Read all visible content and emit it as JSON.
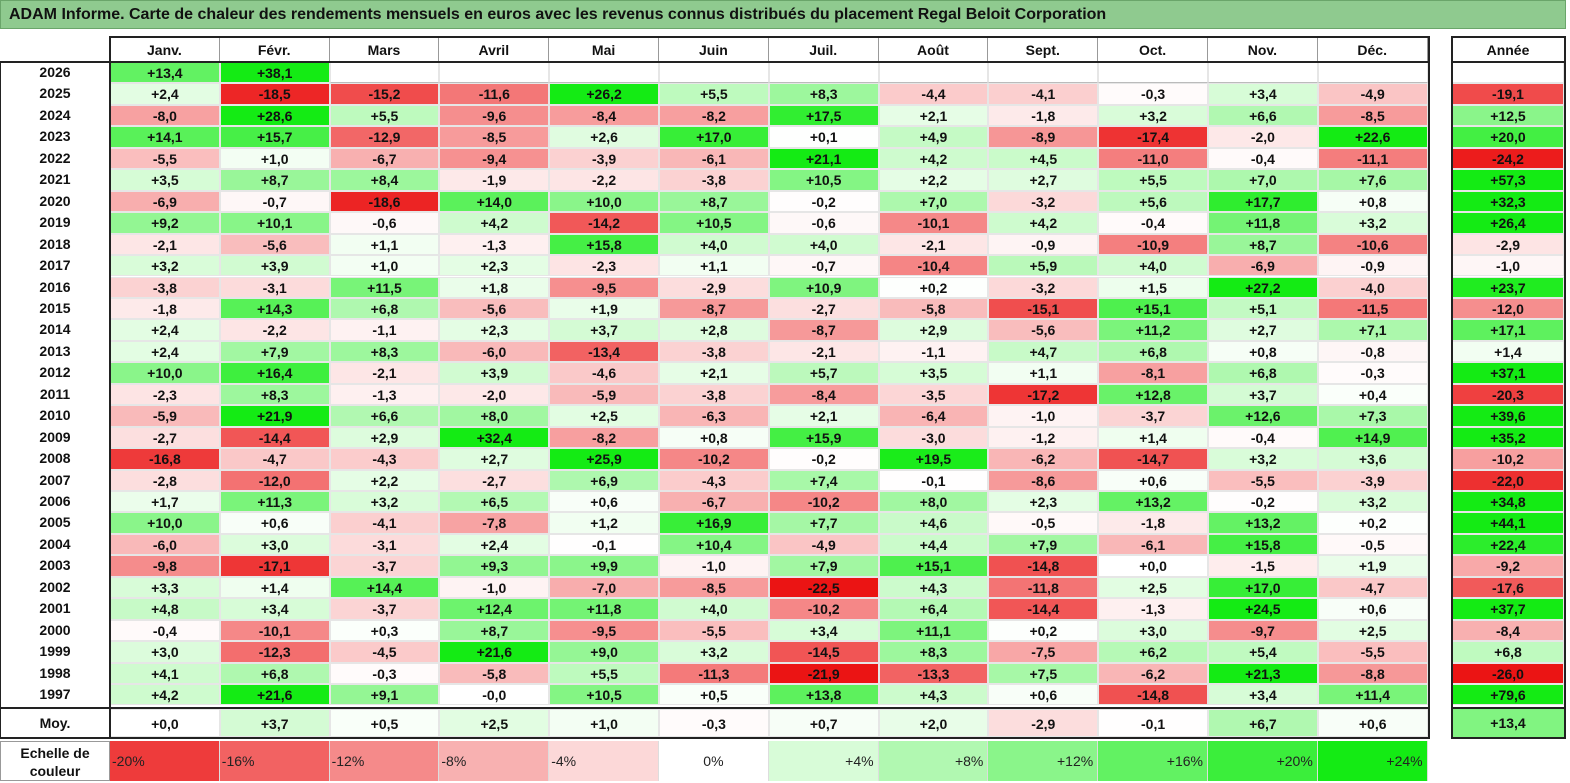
{
  "title": "ADAM Informe. Carte de chaleur des rendements mensuels en euros avec les revenus connus distribués du placement Regal Beloit Corporation",
  "chart_data": {
    "type": "heatmap",
    "months": [
      "Janv.",
      "Févr.",
      "Mars",
      "Avril",
      "Mai",
      "Juin",
      "Juil.",
      "Août",
      "Sept.",
      "Oct.",
      "Nov.",
      "Déc."
    ],
    "year_header": "Année",
    "rows": [
      {
        "year": "2026",
        "cells": [
          "+13,4",
          "+38,1",
          "",
          "",
          "",
          "",
          "",
          "",
          "",
          "",
          "",
          ""
        ],
        "annual": ""
      },
      {
        "year": "2025",
        "cells": [
          "+2,4",
          "-18,5",
          "-15,2",
          "-11,6",
          "+26,2",
          "+5,5",
          "+8,3",
          "-4,4",
          "-4,1",
          "-0,3",
          "+3,4",
          "-4,9"
        ],
        "annual": "-19,1"
      },
      {
        "year": "2024",
        "cells": [
          "-8,0",
          "+28,6",
          "+5,5",
          "-9,6",
          "-8,4",
          "-8,2",
          "+17,5",
          "+2,1",
          "-1,8",
          "+3,2",
          "+6,6",
          "-8,5"
        ],
        "annual": "+12,5"
      },
      {
        "year": "2023",
        "cells": [
          "+14,1",
          "+15,7",
          "-12,9",
          "-8,5",
          "+2,6",
          "+17,0",
          "+0,1",
          "+4,9",
          "-8,9",
          "-17,4",
          "-2,0",
          "+22,6"
        ],
        "annual": "+20,0"
      },
      {
        "year": "2022",
        "cells": [
          "-5,5",
          "+1,0",
          "-6,7",
          "-9,4",
          "-3,9",
          "-6,1",
          "+21,1",
          "+4,2",
          "+4,5",
          "-11,0",
          "-0,4",
          "-11,1"
        ],
        "annual": "-24,2"
      },
      {
        "year": "2021",
        "cells": [
          "+3,5",
          "+8,7",
          "+8,4",
          "-1,9",
          "-2,2",
          "-3,8",
          "+10,5",
          "+2,2",
          "+2,7",
          "+5,5",
          "+7,0",
          "+7,6"
        ],
        "annual": "+57,3"
      },
      {
        "year": "2020",
        "cells": [
          "-6,9",
          "-0,7",
          "-18,6",
          "+14,0",
          "+10,0",
          "+8,7",
          "-0,2",
          "+7,0",
          "-3,2",
          "+5,6",
          "+17,7",
          "+0,8"
        ],
        "annual": "+32,3"
      },
      {
        "year": "2019",
        "cells": [
          "+9,2",
          "+10,1",
          "-0,6",
          "+4,2",
          "-14,2",
          "+10,5",
          "-0,6",
          "-10,1",
          "+4,2",
          "-0,4",
          "+11,8",
          "+3,2"
        ],
        "annual": "+26,4"
      },
      {
        "year": "2018",
        "cells": [
          "-2,1",
          "-5,6",
          "+1,1",
          "-1,3",
          "+15,8",
          "+4,0",
          "+4,0",
          "-2,1",
          "-0,9",
          "-10,9",
          "+8,7",
          "-10,6"
        ],
        "annual": "-2,9"
      },
      {
        "year": "2017",
        "cells": [
          "+3,2",
          "+3,9",
          "+1,0",
          "+2,3",
          "-2,3",
          "+1,1",
          "-0,7",
          "-10,4",
          "+5,9",
          "+4,0",
          "-6,9",
          "-0,9"
        ],
        "annual": "-1,0"
      },
      {
        "year": "2016",
        "cells": [
          "-3,8",
          "-3,1",
          "+11,5",
          "+1,8",
          "-9,5",
          "-2,9",
          "+10,9",
          "+0,2",
          "-3,2",
          "+1,5",
          "+27,2",
          "-4,0"
        ],
        "annual": "+23,7"
      },
      {
        "year": "2015",
        "cells": [
          "-1,8",
          "+14,3",
          "+6,8",
          "-5,6",
          "+1,9",
          "-8,7",
          "-2,7",
          "-5,8",
          "-15,1",
          "+15,1",
          "+5,1",
          "-11,5"
        ],
        "annual": "-12,0"
      },
      {
        "year": "2014",
        "cells": [
          "+2,4",
          "-2,2",
          "-1,1",
          "+2,3",
          "+3,7",
          "+2,8",
          "-8,7",
          "+2,9",
          "-5,6",
          "+11,2",
          "+2,7",
          "+7,1"
        ],
        "annual": "+17,1"
      },
      {
        "year": "2013",
        "cells": [
          "+2,4",
          "+7,9",
          "+8,3",
          "-6,0",
          "-13,4",
          "-3,8",
          "-2,1",
          "-1,1",
          "+4,7",
          "+6,8",
          "+0,8",
          "-0,8"
        ],
        "annual": "+1,4"
      },
      {
        "year": "2012",
        "cells": [
          "+10,0",
          "+16,4",
          "-2,1",
          "+3,9",
          "-4,6",
          "+2,1",
          "+5,7",
          "+3,5",
          "+1,1",
          "-8,1",
          "+6,8",
          "-0,3"
        ],
        "annual": "+37,1"
      },
      {
        "year": "2011",
        "cells": [
          "-2,3",
          "+8,3",
          "-1,3",
          "-2,0",
          "-5,9",
          "-3,8",
          "-8,4",
          "-3,5",
          "-17,2",
          "+12,8",
          "+3,7",
          "+0,4"
        ],
        "annual": "-20,3"
      },
      {
        "year": "2010",
        "cells": [
          "-5,9",
          "+21,9",
          "+6,6",
          "+8,0",
          "+2,5",
          "-6,3",
          "+2,1",
          "-6,4",
          "-1,0",
          "-3,7",
          "+12,6",
          "+7,3"
        ],
        "annual": "+39,6"
      },
      {
        "year": "2009",
        "cells": [
          "-2,7",
          "-14,4",
          "+2,9",
          "+32,4",
          "-8,2",
          "+0,8",
          "+15,9",
          "-3,0",
          "-1,2",
          "+1,4",
          "-0,4",
          "+14,9"
        ],
        "annual": "+35,2"
      },
      {
        "year": "2008",
        "cells": [
          "-16,8",
          "-4,7",
          "-4,3",
          "+2,7",
          "+25,9",
          "-10,2",
          "-0,2",
          "+19,5",
          "-6,2",
          "-14,7",
          "+3,2",
          "+3,6"
        ],
        "annual": "-10,2"
      },
      {
        "year": "2007",
        "cells": [
          "-2,8",
          "-12,0",
          "+2,2",
          "-2,7",
          "+6,9",
          "-4,3",
          "+7,4",
          "-0,1",
          "-8,6",
          "+0,6",
          "-5,5",
          "-3,9"
        ],
        "annual": "-22,0"
      },
      {
        "year": "2006",
        "cells": [
          "+1,7",
          "+11,3",
          "+3,2",
          "+6,5",
          "+0,6",
          "-6,7",
          "-10,2",
          "+8,0",
          "+2,3",
          "+13,2",
          "-0,2",
          "+3,2"
        ],
        "annual": "+34,8"
      },
      {
        "year": "2005",
        "cells": [
          "+10,0",
          "+0,6",
          "-4,1",
          "-7,8",
          "+1,2",
          "+16,9",
          "+7,7",
          "+4,6",
          "-0,5",
          "-1,8",
          "+13,2",
          "+0,2"
        ],
        "annual": "+44,1"
      },
      {
        "year": "2004",
        "cells": [
          "-6,0",
          "+3,0",
          "-3,1",
          "+2,4",
          "-0,1",
          "+10,4",
          "-4,9",
          "+4,4",
          "+7,9",
          "-6,1",
          "+15,8",
          "-0,5"
        ],
        "annual": "+22,4"
      },
      {
        "year": "2003",
        "cells": [
          "-9,8",
          "-17,1",
          "-3,7",
          "+9,3",
          "+9,9",
          "-1,0",
          "+7,9",
          "+15,1",
          "-14,8",
          "+0,0",
          "-1,5",
          "+1,9"
        ],
        "annual": "-9,2"
      },
      {
        "year": "2002",
        "cells": [
          "+3,3",
          "+1,4",
          "+14,4",
          "-1,0",
          "-7,0",
          "-8,5",
          "-22,5",
          "+4,3",
          "-11,8",
          "+2,5",
          "+17,0",
          "-4,7"
        ],
        "annual": "-17,6"
      },
      {
        "year": "2001",
        "cells": [
          "+4,8",
          "+3,4",
          "-3,7",
          "+12,4",
          "+11,8",
          "+4,0",
          "-10,2",
          "+6,4",
          "-14,4",
          "-1,3",
          "+24,5",
          "+0,6"
        ],
        "annual": "+37,7"
      },
      {
        "year": "2000",
        "cells": [
          "-0,4",
          "-10,1",
          "+0,3",
          "+8,7",
          "-9,5",
          "-5,5",
          "+3,4",
          "+11,1",
          "+0,2",
          "+3,0",
          "-9,7",
          "+2,5"
        ],
        "annual": "-8,4"
      },
      {
        "year": "1999",
        "cells": [
          "+3,0",
          "-12,3",
          "-4,5",
          "+21,6",
          "+9,0",
          "+3,2",
          "-14,5",
          "+8,3",
          "-7,5",
          "+6,2",
          "+5,4",
          "-5,5"
        ],
        "annual": "+6,8"
      },
      {
        "year": "1998",
        "cells": [
          "+4,1",
          "+6,8",
          "-0,3",
          "-5,8",
          "+5,5",
          "-11,3",
          "-21,9",
          "-13,3",
          "+7,5",
          "-6,2",
          "+21,3",
          "-8,8"
        ],
        "annual": "-26,0"
      },
      {
        "year": "1997",
        "cells": [
          "+4,2",
          "+21,6",
          "+9,1",
          "-0,0",
          "+10,5",
          "+0,5",
          "+13,8",
          "+4,3",
          "+0,6",
          "-14,8",
          "+3,4",
          "+11,4"
        ],
        "annual": "+79,6"
      }
    ],
    "average": {
      "label": "Moy.",
      "cells": [
        "+0,0",
        "+3,7",
        "+0,5",
        "+2,5",
        "+1,0",
        "-0,3",
        "+0,7",
        "+2,0",
        "-2,9",
        "-0,1",
        "+6,7",
        "+0,6"
      ],
      "annual": "+13,4"
    },
    "color_scale": {
      "label": "Echelle de couleur",
      "steps": [
        "-20%",
        "-16%",
        "-12%",
        "-8%",
        "-4%",
        "0%",
        "+4%",
        "+8%",
        "+12%",
        "+16%",
        "+20%",
        "+24%"
      ],
      "min_color": "#ee0000",
      "zero_color": "#ffffff",
      "max_color": "#00ee00"
    }
  }
}
